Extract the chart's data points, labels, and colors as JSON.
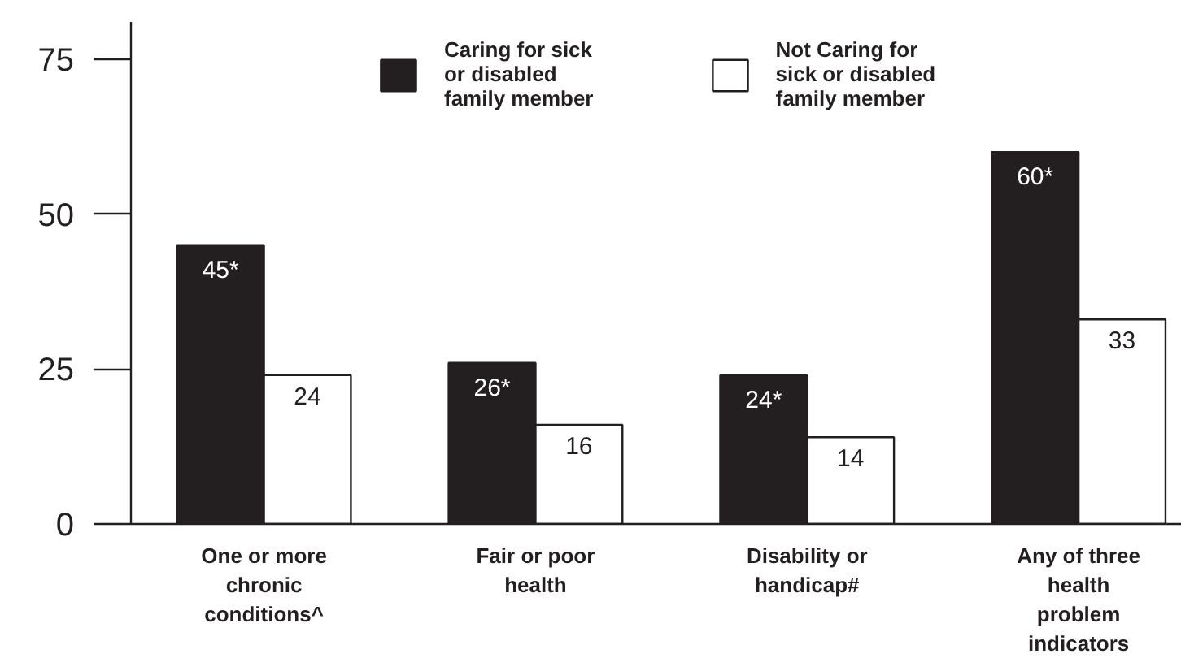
{
  "chart_data": {
    "type": "bar",
    "categories": [
      "One or more chronic conditions^",
      "Fair or poor health",
      "Disability or handicap#",
      "Any of three health problem indicators"
    ],
    "series": [
      {
        "name": "Caring for sick or disabled family member",
        "color": "#231f20",
        "values": [
          45,
          26,
          24,
          60
        ],
        "value_labels": [
          "45*",
          "26*",
          "24*",
          "60*"
        ]
      },
      {
        "name": "Not Caring for sick or disabled family member",
        "color": "#ffffff",
        "values": [
          24,
          16,
          14,
          33
        ],
        "value_labels": [
          "24",
          "16",
          "14",
          "33"
        ]
      }
    ],
    "ylim": [
      0,
      81
    ],
    "yticks": [
      0,
      25,
      50,
      75
    ],
    "grid": false,
    "legend": "top"
  }
}
